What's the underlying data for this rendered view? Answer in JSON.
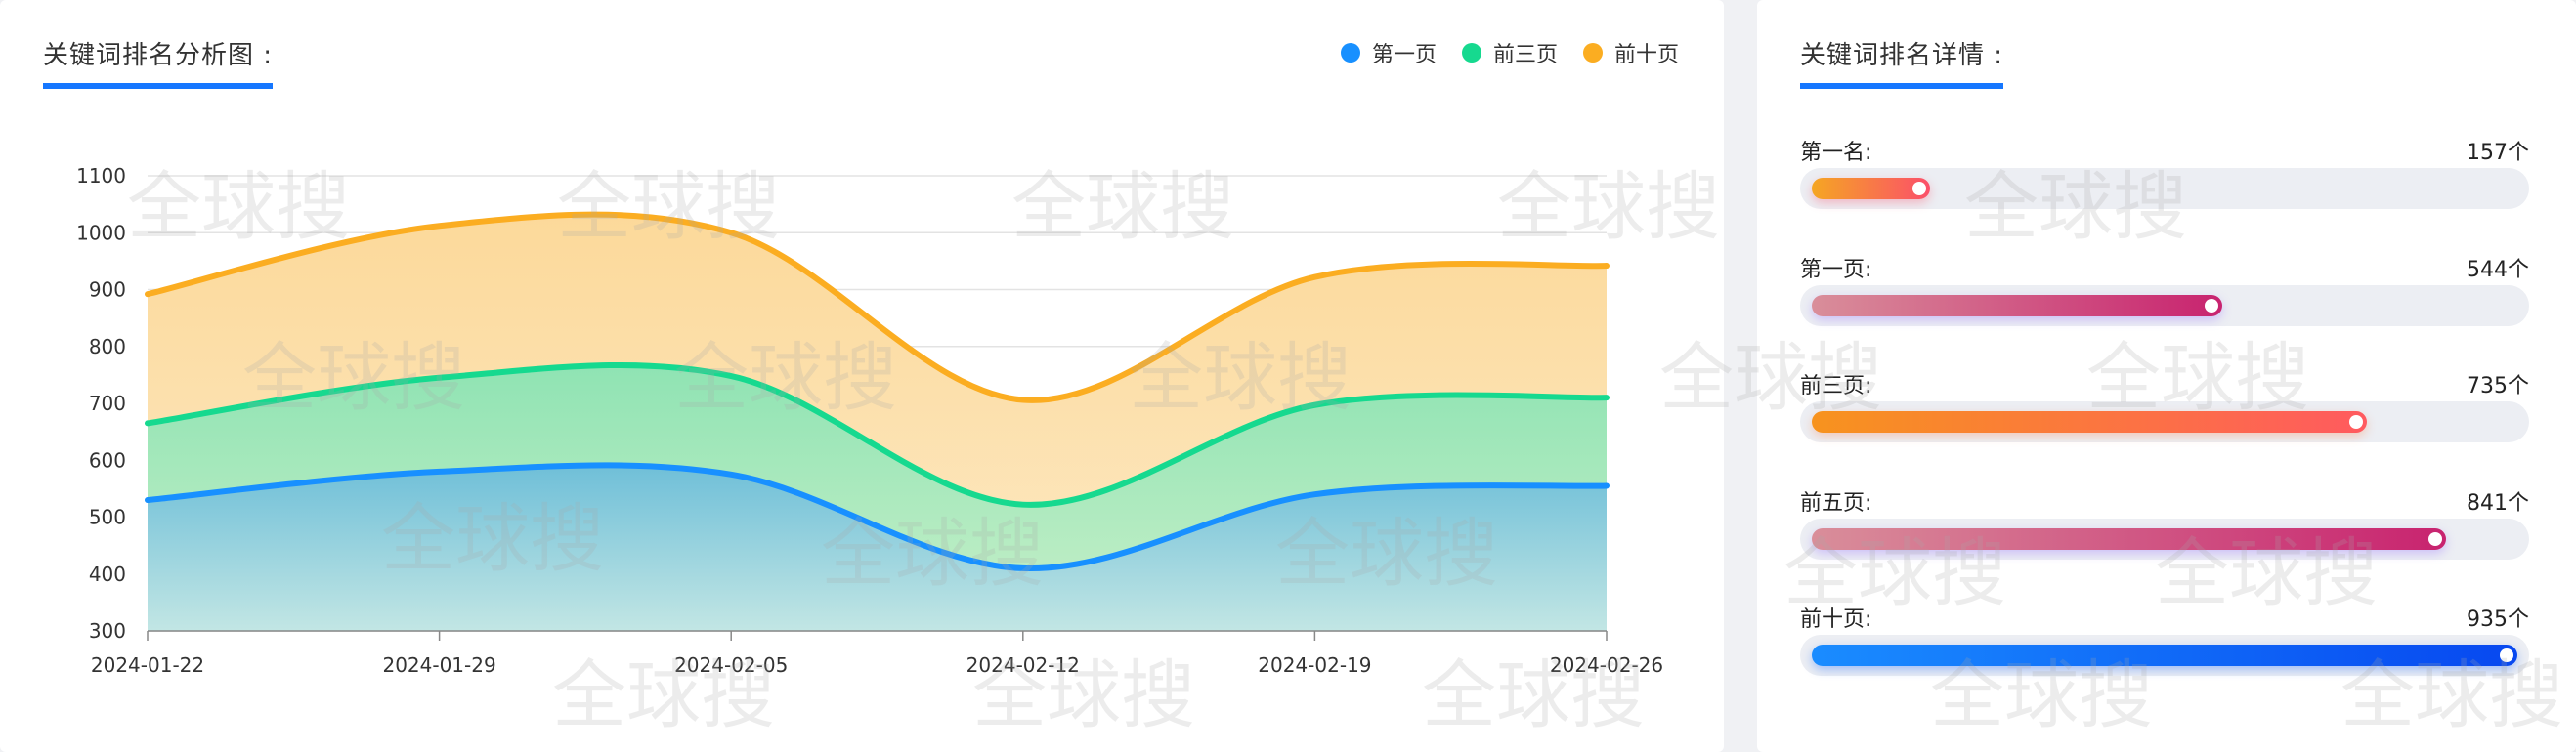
{
  "chart_panel": {
    "title": "关键词排名分析图 :",
    "legend": [
      {
        "label": "第一页",
        "color": "#1890ff"
      },
      {
        "label": "前三页",
        "color": "#16d98f"
      },
      {
        "label": "前十页",
        "color": "#fbad21"
      }
    ]
  },
  "chart_data": {
    "type": "area",
    "x": [
      "2024-01-22",
      "2024-01-29",
      "2024-02-05",
      "2024-02-12",
      "2024-02-19",
      "2024-02-26"
    ],
    "ylim": [
      300,
      1100
    ],
    "yticks": [
      300,
      400,
      500,
      600,
      700,
      800,
      900,
      1000,
      1100
    ],
    "grid": true,
    "legend_position": "top-right",
    "series": [
      {
        "name": "第一页",
        "color": "#1890ff",
        "values": [
          530,
          580,
          575,
          410,
          540,
          555
        ]
      },
      {
        "name": "前三页",
        "color": "#16d98f",
        "values": [
          665,
          745,
          748,
          522,
          697,
          710
        ]
      },
      {
        "name": "前十页",
        "color": "#fbad21",
        "values": [
          892,
          1012,
          1000,
          706,
          922,
          942
        ]
      }
    ]
  },
  "detail_panel": {
    "title": "关键词排名详情 :",
    "max": 935,
    "rows": [
      {
        "label": "第一名:",
        "value": 157,
        "value_text": "157个",
        "gradient": [
          "#f5a623",
          "#fb4f6a"
        ],
        "shadow": "rgba(251,79,106,0.35)"
      },
      {
        "label": "第一页:",
        "value": 544,
        "value_text": "544个",
        "gradient": [
          "#d98e9a",
          "#c8236f"
        ],
        "shadow": "rgba(150,110,255,0.35)"
      },
      {
        "label": "前三页:",
        "value": 735,
        "value_text": "735个",
        "gradient": [
          "#f7931e",
          "#ff5a5f"
        ],
        "shadow": "rgba(255,120,60,0.3)"
      },
      {
        "label": "前五页:",
        "value": 841,
        "value_text": "841个",
        "gradient": [
          "#d98e9a",
          "#c8236f"
        ],
        "shadow": "rgba(150,110,255,0.35)"
      },
      {
        "label": "前十页:",
        "value": 935,
        "value_text": "935个",
        "gradient": [
          "#1a8cff",
          "#0748f0"
        ],
        "shadow": "rgba(20,100,255,0.35)"
      }
    ]
  },
  "watermark": "全球搜"
}
